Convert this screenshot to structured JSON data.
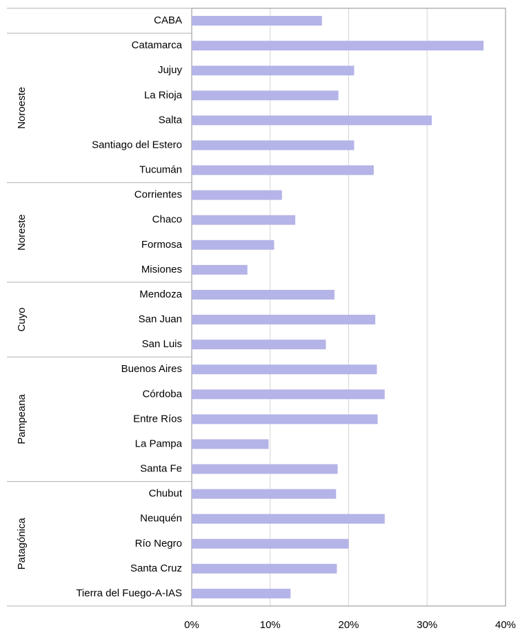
{
  "chart_data": {
    "type": "hbar",
    "categories": [
      "CABA",
      "Catamarca",
      "Jujuy",
      "La Rioja",
      "Salta",
      "Santiago del Estero",
      "Tucumán",
      "Corrientes",
      "Chaco",
      "Formosa",
      "Misiones",
      "Mendoza",
      "San Juan",
      "San Luis",
      "Buenos Aires",
      "Córdoba",
      "Entre Ríos",
      "La Pampa",
      "Santa Fe",
      "Chubut",
      "Neuquén",
      "Río Negro",
      "Santa Cruz",
      "Tierra del Fuego-A-IAS"
    ],
    "category_groups": [
      null,
      "Noroeste",
      "Noroeste",
      "Noroeste",
      "Noroeste",
      "Noroeste",
      "Noroeste",
      "Noreste",
      "Noreste",
      "Noreste",
      "Noreste",
      "Cuyo",
      "Cuyo",
      "Cuyo",
      "Pampeana",
      "Pampeana",
      "Pampeana",
      "Pampeana",
      "Pampeana",
      "Patagónica",
      "Patagónica",
      "Patagónica",
      "Patagónica",
      "Patagónica"
    ],
    "values": [
      16.6,
      37.2,
      20.7,
      18.7,
      30.6,
      20.7,
      23.2,
      11.5,
      13.2,
      10.5,
      7.1,
      18.2,
      23.4,
      17.1,
      23.6,
      24.6,
      23.7,
      9.8,
      18.6,
      18.4,
      24.6,
      20.0,
      18.5,
      12.6
    ],
    "color": "#b4b4e8",
    "xlim": [
      0,
      40
    ],
    "xticks": [
      {
        "value": 0,
        "label": "0%"
      },
      {
        "value": 10,
        "label": "10%"
      },
      {
        "value": 20,
        "label": "20%"
      },
      {
        "value": 30,
        "label": "30%"
      },
      {
        "value": 40,
        "label": "40%"
      }
    ],
    "grid": true
  }
}
